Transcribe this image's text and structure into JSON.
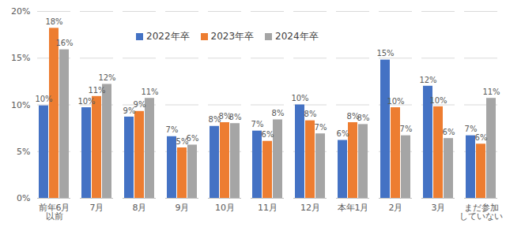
{
  "chart_data": {
    "type": "bar",
    "categories": [
      "前年6月\n以前",
      "7月",
      "8月",
      "9月",
      "10月",
      "11月",
      "12月",
      "本年1月",
      "2月",
      "3月",
      "まだ参加\nしていない"
    ],
    "series": [
      {
        "name": "2022年卒",
        "color": "#4472C4",
        "values": [
          9.9,
          9.7,
          8.7,
          6.6,
          7.7,
          7.2,
          10.0,
          6.2,
          14.8,
          12.0,
          6.7
        ],
        "value_labels": [
          "10%",
          "10%",
          "9%",
          "7%",
          "8%",
          "7%",
          "10%",
          "6%",
          "15%",
          "12%",
          "7%"
        ]
      },
      {
        "name": "2023年卒",
        "color": "#ED7D31",
        "values": [
          18.2,
          10.9,
          9.3,
          5.4,
          8.1,
          6.1,
          8.3,
          8.1,
          9.7,
          9.8,
          5.8
        ],
        "value_labels": [
          "18%",
          "11%",
          "9%",
          "5%",
          "8%",
          "6%",
          "8%",
          "8%",
          "10%",
          "10%",
          "6%"
        ]
      },
      {
        "name": "2024年卒",
        "color": "#A5A5A5",
        "values": [
          15.9,
          12.2,
          10.7,
          5.7,
          8.0,
          8.4,
          6.9,
          7.9,
          6.7,
          6.4,
          10.7
        ],
        "value_labels": [
          "16%",
          "12%",
          "11%",
          "6%",
          "8%",
          "8%",
          "7%",
          "8%",
          "7%",
          "6%",
          "11%"
        ]
      }
    ],
    "ylim": [
      0,
      20
    ],
    "yticks": [
      {
        "value": 0,
        "label": "0%"
      },
      {
        "value": 5,
        "label": "5%"
      },
      {
        "value": 10,
        "label": "10%"
      },
      {
        "value": 15,
        "label": "15%"
      },
      {
        "value": 20,
        "label": "20%"
      }
    ],
    "grid": true,
    "legend": "top",
    "data_labels": true
  }
}
